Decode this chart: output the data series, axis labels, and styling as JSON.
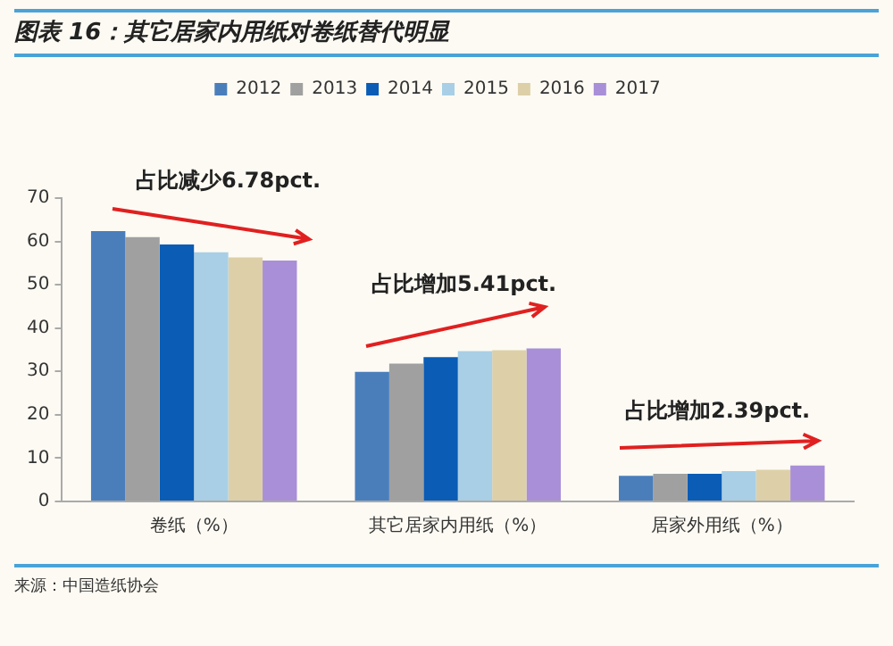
{
  "chart_data": {
    "type": "bar",
    "title": "图表 16：其它居家内用纸对卷纸替代明显",
    "categories": [
      "卷纸（%）",
      "其它居家内用纸（%）",
      "居家外用纸（%）"
    ],
    "series": [
      {
        "name": "2012",
        "color": "#4a7ebb",
        "values": [
          62.4,
          29.9,
          5.9
        ]
      },
      {
        "name": "2013",
        "color": "#a0a0a0",
        "values": [
          61.0,
          31.8,
          6.4
        ]
      },
      {
        "name": "2014",
        "color": "#0a5cb5",
        "values": [
          59.3,
          33.3,
          6.4
        ]
      },
      {
        "name": "2015",
        "color": "#a8cfe6",
        "values": [
          57.5,
          34.7,
          7.0
        ]
      },
      {
        "name": "2016",
        "color": "#ddd0a8",
        "values": [
          56.3,
          34.9,
          7.3
        ]
      },
      {
        "name": "2017",
        "color": "#a88fd8",
        "values": [
          55.6,
          35.3,
          8.3
        ]
      }
    ],
    "ylim": [
      0,
      70
    ],
    "yticks": [
      0,
      10,
      20,
      30,
      40,
      50,
      60,
      70
    ],
    "grid": false,
    "legend": "top",
    "annotations": [
      "占比减少6.78pct.",
      "占比增加5.41pct.",
      "占比增加2.39pct.",
      "来源：中国造纸协会"
    ]
  }
}
